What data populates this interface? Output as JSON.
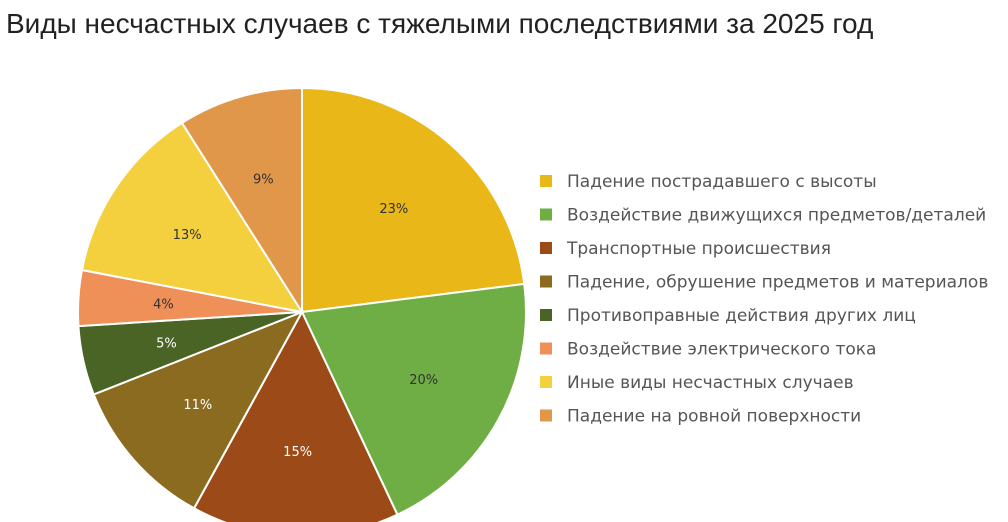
{
  "chart_data": {
    "type": "pie",
    "title": "Виды несчастных случаев с тяжелыми последствиями за 2025 год",
    "legend_position": "right",
    "slices": [
      {
        "label": "Падение пострадавшего с высоты",
        "value": 23,
        "value_label": "23%",
        "color": "#E9B718",
        "label_color": "#333333"
      },
      {
        "label": "Воздействие движущихся предметов/деталей",
        "value": 20,
        "value_label": "20%",
        "color": "#6FAD45",
        "label_color": "#333333"
      },
      {
        "label": "Транспортные происшествия",
        "value": 15,
        "value_label": "15%",
        "color": "#9C4A17",
        "label_color": "#ffffff"
      },
      {
        "label": "Падение, обрушение предметов и материалов",
        "value": 11,
        "value_label": "11%",
        "color": "#8B6B1F",
        "label_color": "#ffffff"
      },
      {
        "label": "Противоправные действия других лиц",
        "value": 5,
        "value_label": "5%",
        "color": "#4A6426",
        "label_color": "#ffffff"
      },
      {
        "label": "Воздействие электрического тока",
        "value": 4,
        "value_label": "4%",
        "color": "#EE9058",
        "label_color": "#333333"
      },
      {
        "label": "Иные виды несчастных случаев",
        "value": 13,
        "value_label": "13%",
        "color": "#F4CF3E",
        "label_color": "#333333"
      },
      {
        "label": "Падение на ровной поверхности",
        "value": 9,
        "value_label": "9%",
        "color": "#E0974A",
        "label_color": "#333333"
      }
    ]
  }
}
